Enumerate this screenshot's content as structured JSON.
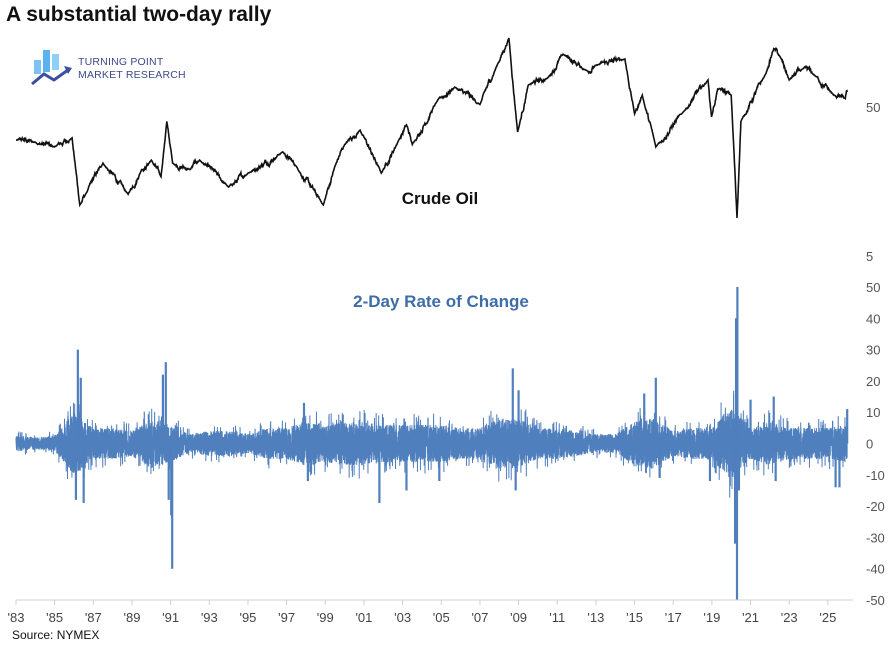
{
  "title": "A substantial two-day rally",
  "logo": {
    "line1": "TURNING POINT",
    "line2": "MARKET RESEARCH"
  },
  "source": "Source: NYMEX",
  "colors": {
    "price_line": "#111111",
    "roc_line": "#4f7fbd",
    "roc_label": "#3f6da8"
  },
  "chart_data": [
    {
      "type": "line",
      "label": "Crude Oil",
      "yscale": "log",
      "yticks": [
        50,
        5
      ],
      "xlim": [
        1983,
        2026
      ],
      "grid": false,
      "points": [
        [
          1983.0,
          30
        ],
        [
          1984.0,
          29
        ],
        [
          1985.0,
          27
        ],
        [
          1985.9,
          31
        ],
        [
          1986.3,
          11
        ],
        [
          1986.6,
          13
        ],
        [
          1987.5,
          21
        ],
        [
          1988.8,
          13
        ],
        [
          1989.5,
          19
        ],
        [
          1990.0,
          22
        ],
        [
          1990.5,
          17
        ],
        [
          1990.8,
          40
        ],
        [
          1991.1,
          21
        ],
        [
          1992.0,
          19
        ],
        [
          1992.5,
          22
        ],
        [
          1994.0,
          14.5
        ],
        [
          1995.0,
          18
        ],
        [
          1996.8,
          25
        ],
        [
          1997.5,
          20
        ],
        [
          1998.9,
          11
        ],
        [
          1999.5,
          20
        ],
        [
          2000.0,
          28
        ],
        [
          2000.8,
          35
        ],
        [
          2001.9,
          18
        ],
        [
          2002.8,
          30
        ],
        [
          2003.2,
          38
        ],
        [
          2003.5,
          28
        ],
        [
          2004.8,
          55
        ],
        [
          2005.7,
          68
        ],
        [
          2007.0,
          52
        ],
        [
          2007.9,
          96
        ],
        [
          2008.5,
          145
        ],
        [
          2008.95,
          34
        ],
        [
          2009.5,
          70
        ],
        [
          2010.5,
          78
        ],
        [
          2011.3,
          113
        ],
        [
          2012.5,
          88
        ],
        [
          2013.0,
          95
        ],
        [
          2014.5,
          105
        ],
        [
          2015.0,
          45
        ],
        [
          2015.4,
          60
        ],
        [
          2016.1,
          27
        ],
        [
          2017.5,
          46
        ],
        [
          2018.8,
          76
        ],
        [
          2018.98,
          43
        ],
        [
          2019.3,
          66
        ],
        [
          2020.0,
          60
        ],
        [
          2020.3,
          9
        ],
        [
          2020.5,
          40
        ],
        [
          2021.8,
          84
        ],
        [
          2022.2,
          123
        ],
        [
          2022.5,
          110
        ],
        [
          2023.0,
          76
        ],
        [
          2023.7,
          90
        ],
        [
          2024.3,
          82
        ],
        [
          2025.3,
          60
        ],
        [
          2025.9,
          57
        ],
        [
          2026.0,
          63
        ]
      ]
    },
    {
      "type": "line",
      "label": "2-Day Rate of Change",
      "yticks": [
        50,
        40,
        30,
        20,
        10,
        0,
        -10,
        -20,
        -30,
        -40,
        -50
      ],
      "ylim": [
        -50,
        50
      ],
      "xlim": [
        1983,
        2026
      ],
      "grid": false,
      "typical_range_by_year": [
        [
          1983,
          2.5
        ],
        [
          1984,
          2
        ],
        [
          1985,
          2.5
        ],
        [
          1986,
          10
        ],
        [
          1987,
          5
        ],
        [
          1988,
          5
        ],
        [
          1989,
          4
        ],
        [
          1990,
          8
        ],
        [
          1991,
          6
        ],
        [
          1992,
          3
        ],
        [
          1993,
          4
        ],
        [
          1994,
          4
        ],
        [
          1995,
          3
        ],
        [
          1996,
          5
        ],
        [
          1997,
          5
        ],
        [
          1998,
          7
        ],
        [
          1999,
          6
        ],
        [
          2000,
          7
        ],
        [
          2001,
          7
        ],
        [
          2002,
          6
        ],
        [
          2003,
          6
        ],
        [
          2004,
          6
        ],
        [
          2005,
          6
        ],
        [
          2006,
          5
        ],
        [
          2007,
          5
        ],
        [
          2008,
          8
        ],
        [
          2009,
          8
        ],
        [
          2010,
          5
        ],
        [
          2011,
          5
        ],
        [
          2012,
          4
        ],
        [
          2013,
          3
        ],
        [
          2014,
          3
        ],
        [
          2015,
          7
        ],
        [
          2016,
          8
        ],
        [
          2017,
          4
        ],
        [
          2018,
          5
        ],
        [
          2019,
          5
        ],
        [
          2020,
          12
        ],
        [
          2021,
          5
        ],
        [
          2022,
          7
        ],
        [
          2023,
          5
        ],
        [
          2024,
          5
        ],
        [
          2025,
          5
        ],
        [
          2026,
          6
        ]
      ],
      "spikes": [
        [
          1986.1,
          -18
        ],
        [
          1986.2,
          30
        ],
        [
          1986.5,
          -19
        ],
        [
          1986.35,
          21
        ],
        [
          1990.6,
          22
        ],
        [
          1990.75,
          26
        ],
        [
          1990.9,
          -18
        ],
        [
          1991.03,
          -23
        ],
        [
          1991.08,
          -40
        ],
        [
          1997.9,
          13
        ],
        [
          1998.1,
          -12
        ],
        [
          2001.8,
          -19
        ],
        [
          2003.2,
          -15
        ],
        [
          2004.9,
          -12
        ],
        [
          2008.7,
          24
        ],
        [
          2008.85,
          -15
        ],
        [
          2009.0,
          17
        ],
        [
          2015.5,
          16
        ],
        [
          2016.1,
          21
        ],
        [
          2016.3,
          -11
        ],
        [
          2018.9,
          -12
        ],
        [
          2020.2,
          -32
        ],
        [
          2020.25,
          40
        ],
        [
          2020.3,
          -50
        ],
        [
          2020.32,
          50
        ],
        [
          2020.4,
          -15
        ],
        [
          2021.0,
          14
        ],
        [
          2022.2,
          15
        ],
        [
          2022.3,
          -12
        ],
        [
          2025.4,
          -14
        ],
        [
          2025.6,
          -14
        ],
        [
          2026.0,
          11
        ]
      ],
      "xtick_labels": [
        "'83",
        "'85",
        "'87",
        "'89",
        "'91",
        "'93",
        "'95",
        "'97",
        "'99",
        "'01",
        "'03",
        "'05",
        "'07",
        "'09",
        "'11",
        "'13",
        "'15",
        "'17",
        "'19",
        "'21",
        "'23",
        "'25"
      ]
    }
  ]
}
